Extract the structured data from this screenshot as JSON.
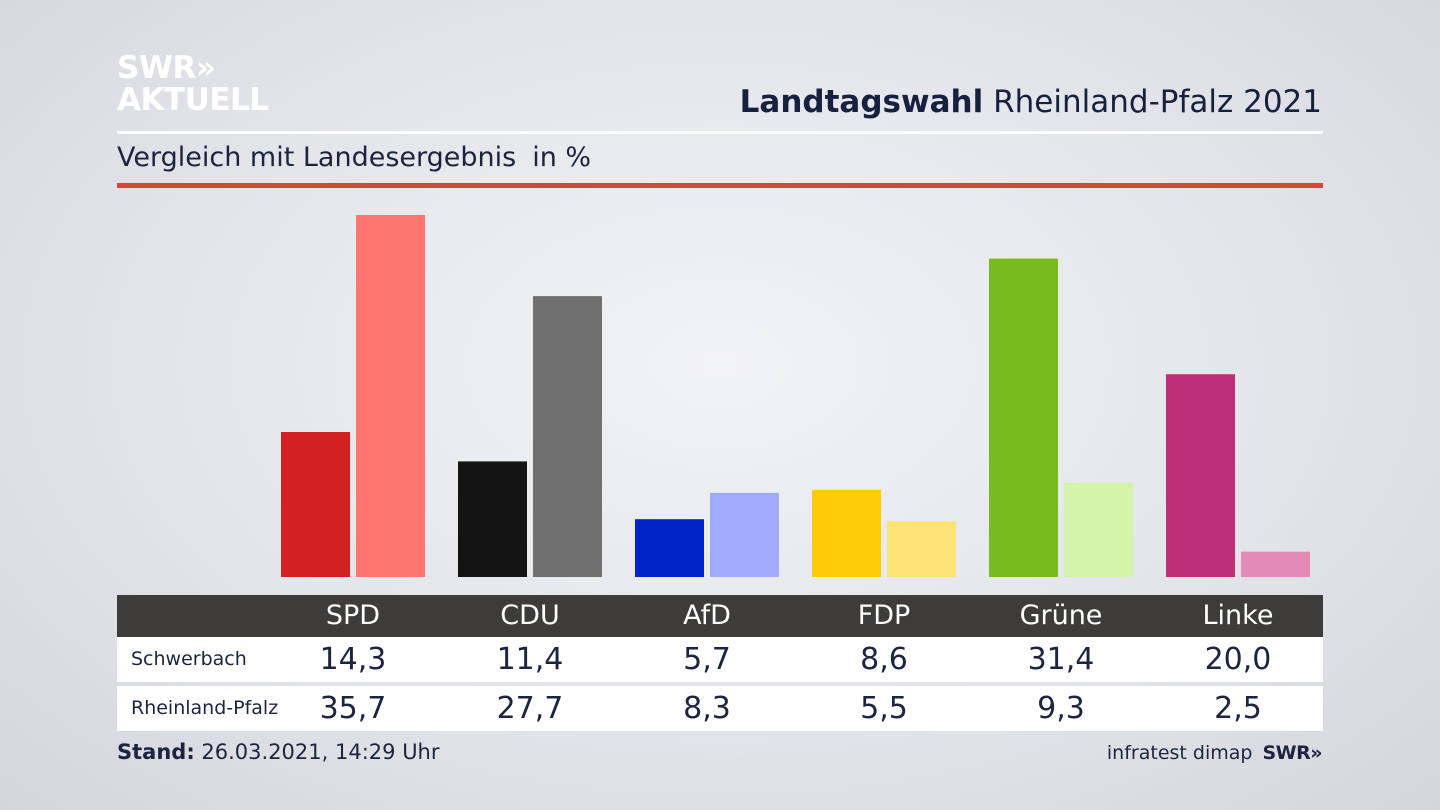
{
  "branding": {
    "logo_line1": "SWR»",
    "logo_line2": "AKTUELL",
    "footer_logo": "SWR»"
  },
  "header": {
    "title_bold": "Landtagswahl",
    "title_rest": "Rheinland-Pfalz 2021"
  },
  "subtitle": {
    "text": "Vergleich mit Landesergebnis",
    "unit": "in %"
  },
  "chart_data": {
    "type": "bar",
    "categories": [
      "SPD",
      "CDU",
      "AfD",
      "FDP",
      "Grüne",
      "Linke"
    ],
    "series": [
      {
        "name": "Schwerbach",
        "values": [
          14.3,
          11.4,
          5.7,
          8.6,
          31.4,
          20.0
        ],
        "colors": [
          "#d42020",
          "#141414",
          "#0024c8",
          "#ffcc0a",
          "#78bb1e",
          "#bd2f76"
        ]
      },
      {
        "name": "Rheinland-Pfalz",
        "values": [
          35.7,
          27.7,
          8.3,
          5.5,
          9.3,
          2.5
        ],
        "colors": [
          "#ff7570",
          "#717070",
          "#9eabff",
          "#ffe377",
          "#d4f4aa",
          "#e48ab9"
        ]
      }
    ]
  },
  "table": {
    "rows": [
      {
        "label": "Schwerbach",
        "values": [
          "14,3",
          "11,4",
          "5,7",
          "8,6",
          "31,4",
          "20,0"
        ]
      },
      {
        "label": "Rheinland-Pfalz",
        "values": [
          "35,7",
          "27,7",
          "8,3",
          "5,5",
          "9,3",
          "2,5"
        ]
      }
    ]
  },
  "footer": {
    "stand_label": "Stand:",
    "stand_value": "26.03.2021, 14:29 Uhr",
    "source": "infratest dimap"
  }
}
